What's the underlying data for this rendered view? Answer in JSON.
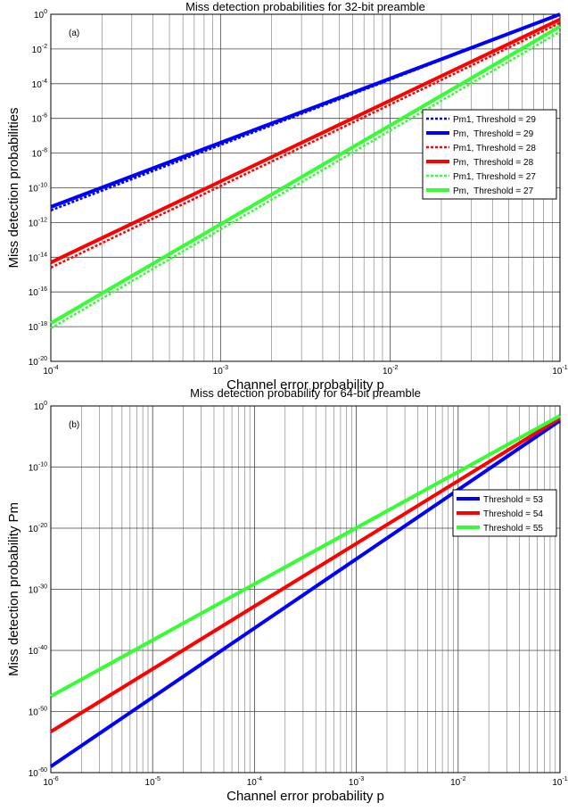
{
  "chart_data": [
    {
      "type": "line",
      "panel_label": "(a)",
      "title": "Miss detection probabilities for 32-bit preamble",
      "xlabel": "Channel error probability p",
      "ylabel": "Miss detection probabilities",
      "xscale": "log",
      "yscale": "log",
      "xlim_exp": [
        -4,
        -1
      ],
      "ylim_exp": [
        -20,
        0
      ],
      "xticks_exp": [
        -4,
        -3,
        -2,
        -1
      ],
      "yticks_exp": [
        -20,
        -18,
        -16,
        -14,
        -12,
        -10,
        -8,
        -6,
        -4,
        -2,
        0
      ],
      "grid": true,
      "legend_position": "right",
      "series": [
        {
          "name": "Pm1, Threshold = 29",
          "color": "#0000ff",
          "dash": true,
          "x": [
            0.0001,
            0.1
          ],
          "y_exp": [
            -11.3,
            0.0
          ]
        },
        {
          "name": "Pm,  Threshold = 29",
          "color": "#0000ff",
          "dash": false,
          "x": [
            0.0001,
            0.1
          ],
          "y_exp": [
            -11.1,
            0.0
          ]
        },
        {
          "name": "Pm1, Threshold = 28",
          "color": "#ff0000",
          "dash": true,
          "x": [
            0.0001,
            0.1
          ],
          "y_exp": [
            -14.6,
            -0.5
          ]
        },
        {
          "name": "Pm,  Threshold = 28",
          "color": "#ff0000",
          "dash": false,
          "x": [
            0.0001,
            0.1
          ],
          "y_exp": [
            -14.3,
            -0.3
          ]
        },
        {
          "name": "Pm1, Threshold = 27",
          "color": "#33ff33",
          "dash": true,
          "x": [
            0.0001,
            0.1
          ],
          "y_exp": [
            -18.1,
            -1.0
          ]
        },
        {
          "name": "Pm,  Threshold = 27",
          "color": "#33ff33",
          "dash": false,
          "x": [
            0.0001,
            0.1
          ],
          "y_exp": [
            -17.8,
            -0.7
          ]
        }
      ]
    },
    {
      "type": "line",
      "panel_label": "(b)",
      "title": "Miss detection probability for 64-bit preamble",
      "xlabel": "Channel error probability p",
      "ylabel": "Miss detection probability Pm",
      "xscale": "log",
      "yscale": "log",
      "xlim_exp": [
        -6,
        -1
      ],
      "ylim_exp": [
        -60,
        0
      ],
      "xticks_exp": [
        -6,
        -5,
        -4,
        -3,
        -2,
        -1
      ],
      "yticks_exp": [
        -60,
        -50,
        -40,
        -30,
        -20,
        -10,
        0
      ],
      "grid": true,
      "legend_position": "right",
      "series": [
        {
          "name": "Threshold = 53",
          "color": "#0000ff",
          "dash": false,
          "x": [
            1e-06,
            0.1
          ],
          "y_exp": [
            -59.0,
            -2.4
          ]
        },
        {
          "name": "Threshold = 54",
          "color": "#ff0000",
          "dash": false,
          "x": [
            1e-06,
            0.1
          ],
          "y_exp": [
            -53.3,
            -2.0
          ]
        },
        {
          "name": "Threshold = 55",
          "color": "#33ff33",
          "dash": false,
          "x": [
            1e-06,
            0.1
          ],
          "y_exp": [
            -47.5,
            -1.6
          ]
        }
      ]
    }
  ]
}
